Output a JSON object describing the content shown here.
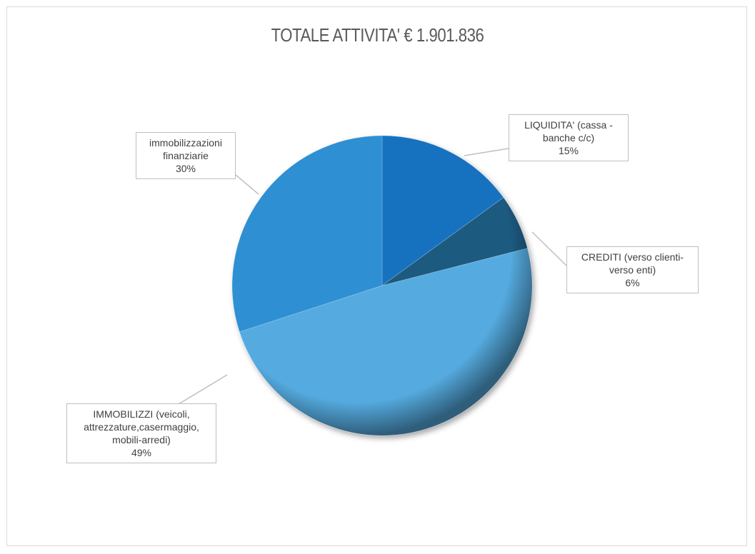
{
  "chart_data": {
    "type": "pie",
    "title": "TOTALE ATTIVITA' € 1.901.836",
    "categories": [
      "LIQUIDITA' (cassa - banche c/c)",
      "CREDITI (verso clienti- verso enti)",
      "IMMOBILIZZI (veicoli, attrezzature,casermaggio, mobili-arredi)",
      "immobilizzazioni finanziarie"
    ],
    "values": [
      15,
      6,
      49,
      30
    ],
    "value_labels": [
      "15%",
      "6%",
      "49%",
      "30%"
    ],
    "colors": [
      "#1672bf",
      "#1f5a80",
      "#55abe0",
      "#2f90d2"
    ]
  }
}
